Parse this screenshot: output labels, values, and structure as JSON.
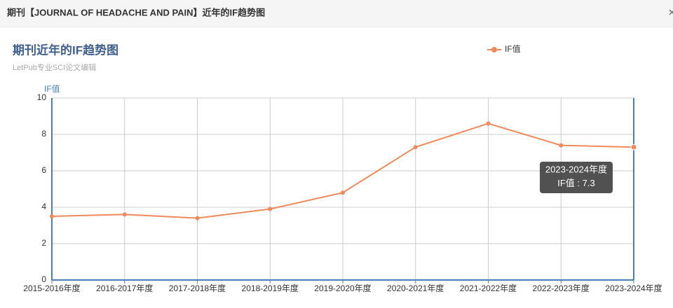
{
  "header": {
    "title": "期刊【JOURNAL OF HEADACHE AND PAIN】近年的IF趋势图"
  },
  "chart_data": {
    "type": "line",
    "title": "期刊近年的IF趋势图",
    "subtitle": "LetPub专业SCI论文编辑",
    "y_label": "IF值",
    "categories": [
      "2015-2016年度",
      "2016-2017年度",
      "2017-2018年度",
      "2018-2019年度",
      "2019-2020年度",
      "2020-2021年度",
      "2021-2022年度",
      "2022-2023年度",
      "2023-2024年度"
    ],
    "series": [
      {
        "name": "IF值",
        "color": "#ef8a5c",
        "values": [
          3.5,
          3.6,
          3.4,
          3.9,
          4.8,
          7.3,
          8.6,
          7.4,
          7.3
        ]
      }
    ],
    "ylim": [
      0,
      10
    ],
    "yticks": [
      0,
      2,
      4,
      6,
      8,
      10
    ],
    "grid": true,
    "legend": "top-right"
  }
}
